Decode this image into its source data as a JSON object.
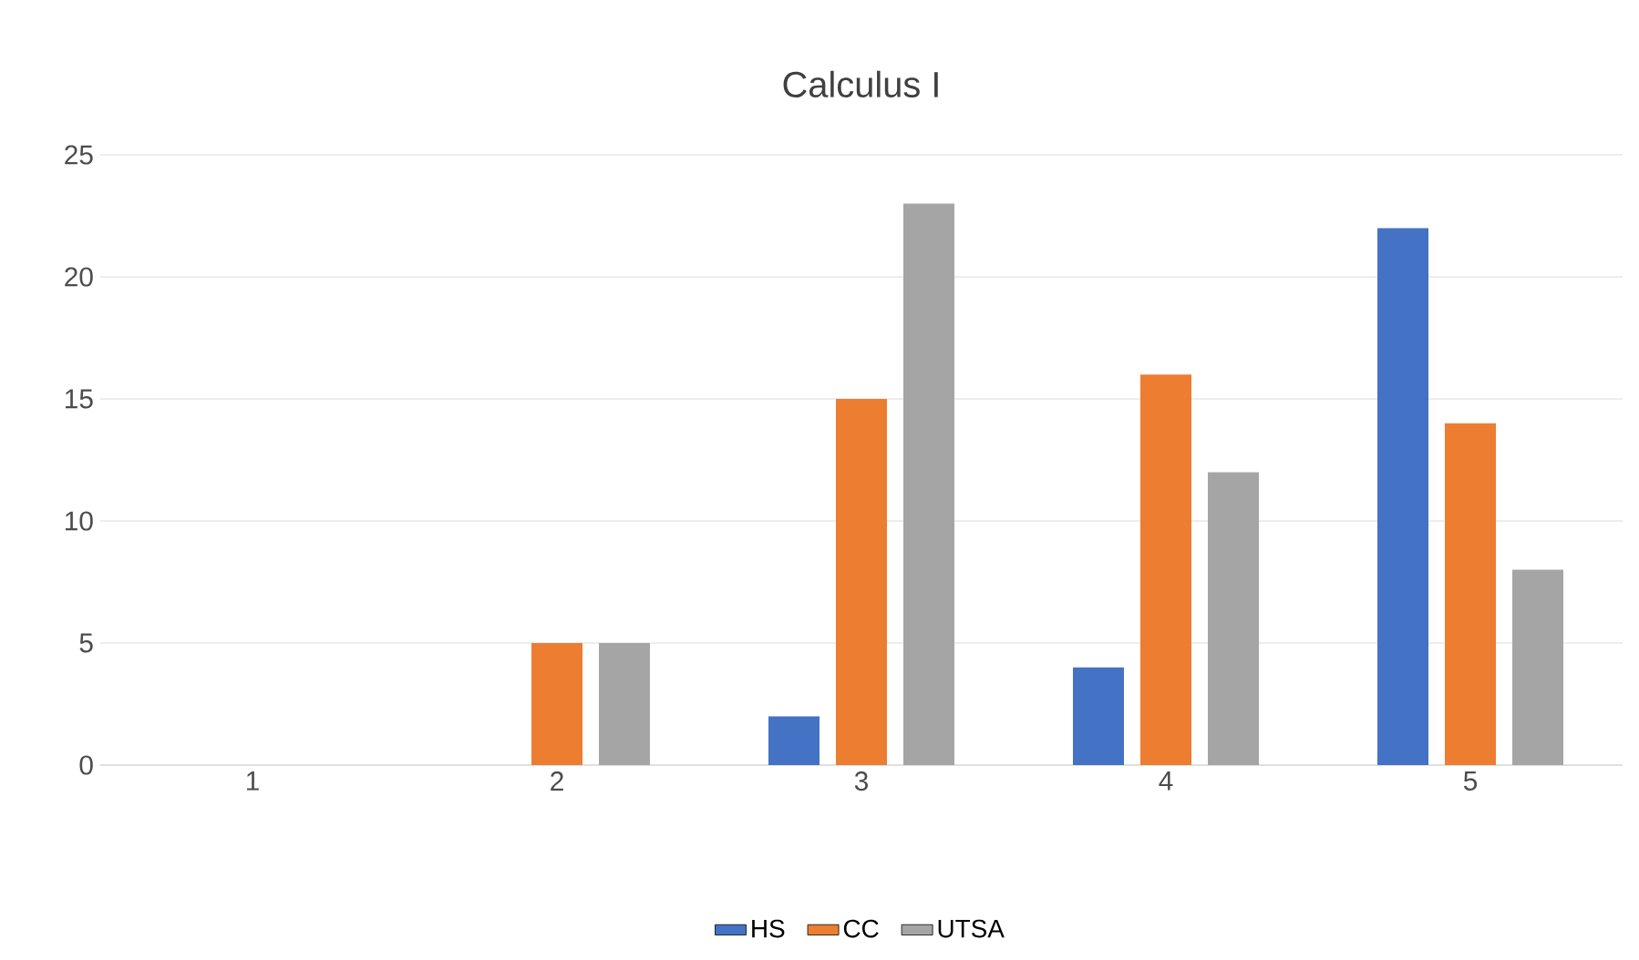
{
  "chart_data": {
    "type": "bar",
    "title": "Calculus I",
    "categories": [
      "1",
      "2",
      "3",
      "4",
      "5"
    ],
    "series": [
      {
        "name": "HS",
        "color": "#4472c4",
        "values": [
          0,
          0,
          2,
          4,
          22
        ]
      },
      {
        "name": "CC",
        "color": "#ed7d31",
        "values": [
          0,
          5,
          15,
          16,
          14
        ]
      },
      {
        "name": "UTSA",
        "color": "#a5a5a5",
        "values": [
          0,
          5,
          23,
          12,
          8
        ]
      }
    ],
    "ylim": [
      0,
      25
    ],
    "yticks": [
      0,
      5,
      10,
      15,
      20,
      25
    ],
    "grid": "y",
    "legend": "bottom"
  }
}
